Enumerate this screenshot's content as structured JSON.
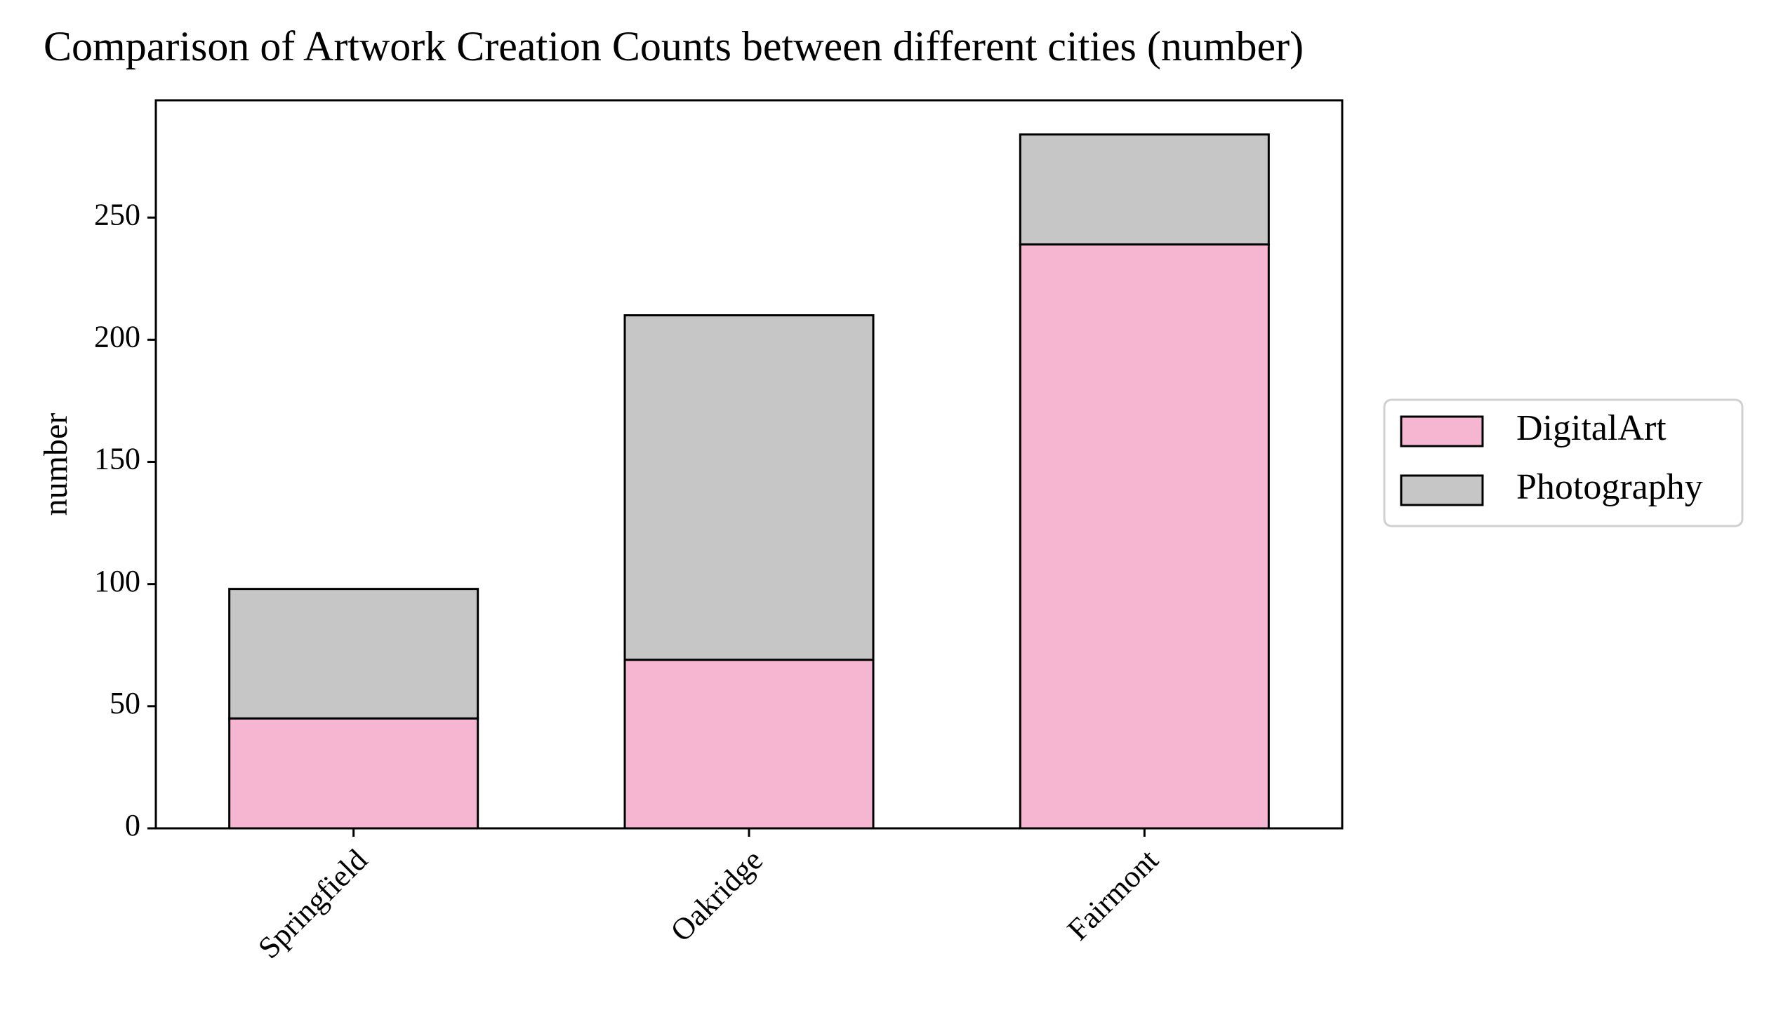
{
  "chart_data": {
    "type": "bar",
    "stacked": true,
    "title": "Comparison of Artwork Creation Counts between different cities (number)",
    "xlabel": "",
    "ylabel": "number",
    "categories": [
      "Springfield",
      "Oakridge",
      "Fairmont"
    ],
    "series": [
      {
        "name": "DigitalArt",
        "values": [
          45,
          69,
          239
        ],
        "color": "#f6b6d2"
      },
      {
        "name": "Photography",
        "values": [
          53,
          141,
          45
        ],
        "color": "#c6c6c6"
      }
    ],
    "ylim": [
      0,
      298
    ],
    "yticks": [
      0,
      50,
      100,
      150,
      200,
      250
    ],
    "grid": false,
    "legend_position": "center-right-outside"
  }
}
